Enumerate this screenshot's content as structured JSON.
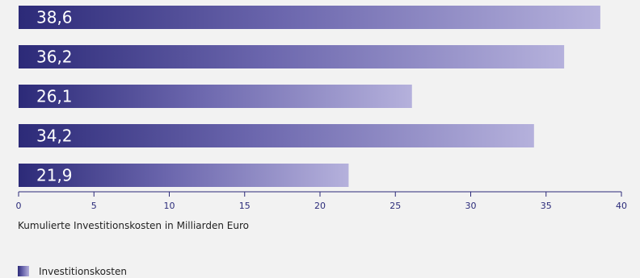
{
  "chart_data": {
    "type": "bar",
    "orientation": "horizontal",
    "values": [
      38.6,
      36.2,
      26.1,
      34.2,
      21.9
    ],
    "data_labels": [
      "38,6",
      "36,2",
      "26,1",
      "34,2",
      "21,9"
    ],
    "xlim": [
      0,
      40
    ],
    "x_ticks": [
      "0",
      "5",
      "10",
      "15",
      "20",
      "25",
      "30",
      "35",
      "40"
    ],
    "xlabel": "Kumulierte Investitionskosten in Milliarden Euro",
    "legend": [
      "Investitionskosten"
    ],
    "legend_position": "bottom-left",
    "grid": false,
    "colors": {
      "bar_start": "#2c2a78",
      "bar_mid": "#6b66ad",
      "bar_end": "#b5b1dc",
      "axis": "#2c2a78",
      "background": "#f2f2f2"
    }
  }
}
